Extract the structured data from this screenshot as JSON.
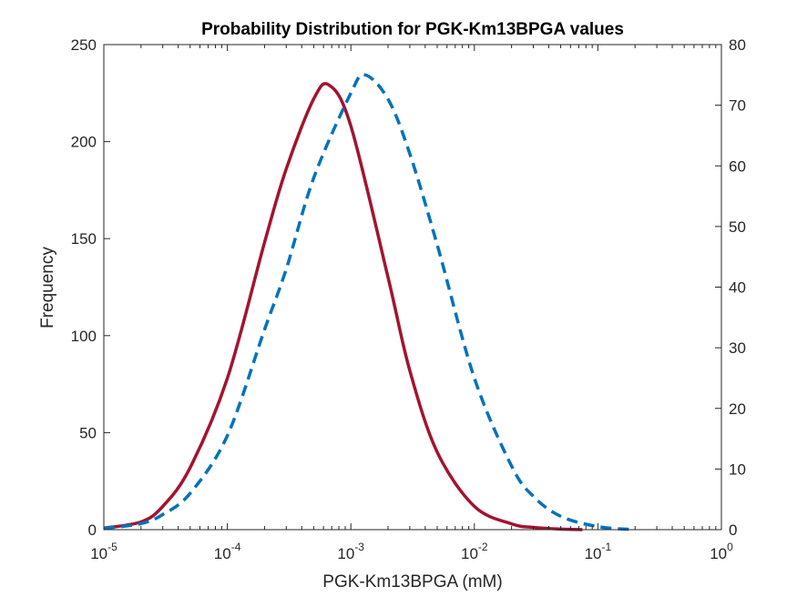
{
  "chart_data": {
    "type": "line",
    "title": "Probability Distribution for PGK-Km13BPGA values",
    "xlabel": "PGK-Km13BPGA (mM)",
    "ylabel": "Frequency",
    "xscale": "log",
    "xlim": [
      1e-05,
      1
    ],
    "ylim_left": [
      0,
      250
    ],
    "ylim_right": [
      0,
      80
    ],
    "grid": false,
    "legend": "none",
    "x_tick_labels": [
      {
        "base": "10",
        "exp": "-5"
      },
      {
        "base": "10",
        "exp": "-4"
      },
      {
        "base": "10",
        "exp": "-3"
      },
      {
        "base": "10",
        "exp": "-2"
      },
      {
        "base": "10",
        "exp": "-1"
      },
      {
        "base": "10",
        "exp": "0"
      }
    ],
    "y_left_tick_labels": [
      "0",
      "50",
      "100",
      "150",
      "200",
      "250"
    ],
    "y_right_tick_labels": [
      "0",
      "10",
      "20",
      "30",
      "40",
      "50",
      "60",
      "70",
      "80"
    ],
    "series": [
      {
        "axis": "left",
        "color": "#A2142F",
        "style": "solid",
        "x": [
          1e-05,
          2e-05,
          3e-05,
          5e-05,
          0.0001,
          0.0002,
          0.0003,
          0.0005,
          0.00067,
          0.001,
          0.002,
          0.003,
          0.005,
          0.01,
          0.02,
          0.03,
          0.05,
          0.075
        ],
        "y": [
          0.8,
          4,
          12,
          32,
          78,
          148,
          186,
          222,
          229,
          208,
          130,
          82,
          40,
          12,
          3,
          1.2,
          0.3,
          0
        ]
      },
      {
        "axis": "right",
        "color": "#0072BD",
        "style": "dashed",
        "x": [
          1e-05,
          2e-05,
          3e-05,
          5e-05,
          0.0001,
          0.0002,
          0.0003,
          0.0005,
          0.001,
          0.0013,
          0.002,
          0.003,
          0.005,
          0.01,
          0.02,
          0.03,
          0.05,
          0.1,
          0.2
        ],
        "y": [
          0.2,
          1,
          2.5,
          6,
          15.5,
          33,
          43,
          58,
          72,
          75,
          71,
          62,
          47,
          25,
          10.5,
          5.5,
          2.2,
          0.5,
          0
        ]
      }
    ]
  }
}
